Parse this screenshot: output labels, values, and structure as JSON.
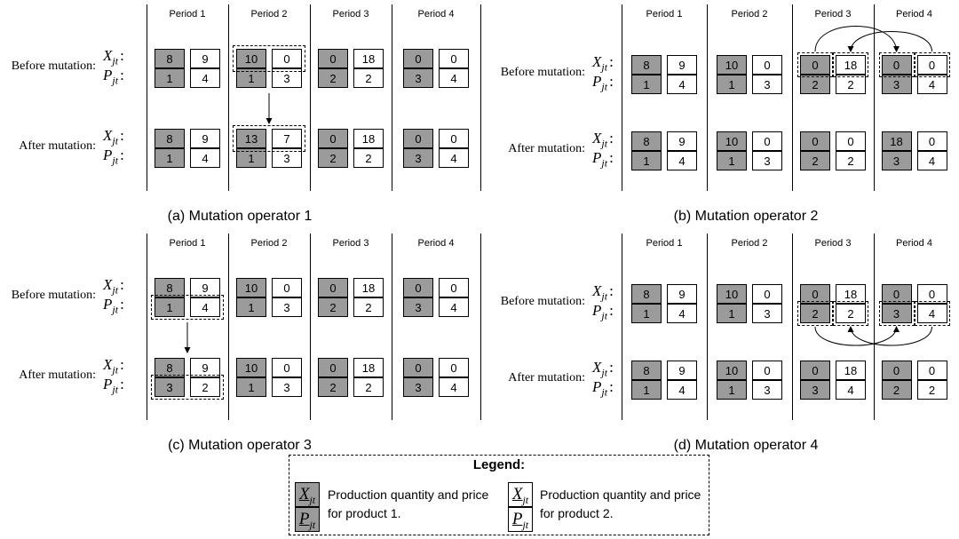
{
  "panels": [
    {
      "caption": "(a) Mutation operator 1",
      "periods": [
        "Period 1",
        "Period 2",
        "Period 3",
        "Period 4"
      ],
      "rows": {
        "before": {
          "label": "Before mutation:",
          "X": [
            [
              8,
              9
            ],
            [
              10,
              0
            ],
            [
              0,
              18
            ],
            [
              0,
              0
            ]
          ],
          "P": [
            [
              1,
              4
            ],
            [
              1,
              3
            ],
            [
              2,
              2
            ],
            [
              3,
              4
            ]
          ]
        },
        "after": {
          "label": "After mutation:",
          "X": [
            [
              8,
              9
            ],
            [
              13,
              7
            ],
            [
              0,
              18
            ],
            [
              0,
              0
            ]
          ],
          "P": [
            [
              1,
              4
            ],
            [
              1,
              3
            ],
            [
              2,
              2
            ],
            [
              3,
              4
            ]
          ]
        }
      }
    },
    {
      "caption": "(b) Mutation operator 2",
      "periods": [
        "Period 1",
        "Period 2",
        "Period 3",
        "Period 4"
      ],
      "rows": {
        "before": {
          "label": "Before mutation:",
          "X": [
            [
              8,
              9
            ],
            [
              10,
              0
            ],
            [
              0,
              18
            ],
            [
              0,
              0
            ]
          ],
          "P": [
            [
              1,
              4
            ],
            [
              1,
              3
            ],
            [
              2,
              2
            ],
            [
              3,
              4
            ]
          ]
        },
        "after": {
          "label": "After mutation:",
          "X": [
            [
              8,
              9
            ],
            [
              10,
              0
            ],
            [
              0,
              0
            ],
            [
              18,
              0
            ]
          ],
          "P": [
            [
              1,
              4
            ],
            [
              1,
              3
            ],
            [
              2,
              2
            ],
            [
              3,
              4
            ]
          ]
        }
      }
    },
    {
      "caption": "(c) Mutation operator 3",
      "periods": [
        "Period 1",
        "Period 2",
        "Period 3",
        "Period 4"
      ],
      "rows": {
        "before": {
          "label": "Before mutation:",
          "X": [
            [
              8,
              9
            ],
            [
              10,
              0
            ],
            [
              0,
              18
            ],
            [
              0,
              0
            ]
          ],
          "P": [
            [
              1,
              4
            ],
            [
              1,
              3
            ],
            [
              2,
              2
            ],
            [
              3,
              4
            ]
          ]
        },
        "after": {
          "label": "After mutation:",
          "X": [
            [
              8,
              9
            ],
            [
              10,
              0
            ],
            [
              0,
              18
            ],
            [
              0,
              0
            ]
          ],
          "P": [
            [
              3,
              2
            ],
            [
              1,
              3
            ],
            [
              2,
              2
            ],
            [
              3,
              4
            ]
          ]
        }
      }
    },
    {
      "caption": "(d) Mutation operator 4",
      "periods": [
        "Period 1",
        "Period 2",
        "Period 3",
        "Period 4"
      ],
      "rows": {
        "before": {
          "label": "Before mutation:",
          "X": [
            [
              8,
              9
            ],
            [
              10,
              0
            ],
            [
              0,
              18
            ],
            [
              0,
              0
            ]
          ],
          "P": [
            [
              1,
              4
            ],
            [
              1,
              3
            ],
            [
              2,
              2
            ],
            [
              3,
              4
            ]
          ]
        },
        "after": {
          "label": "After mutation:",
          "X": [
            [
              8,
              9
            ],
            [
              10,
              0
            ],
            [
              0,
              18
            ],
            [
              0,
              0
            ]
          ],
          "P": [
            [
              1,
              4
            ],
            [
              1,
              3
            ],
            [
              3,
              4
            ],
            [
              2,
              2
            ]
          ]
        }
      }
    }
  ],
  "var_labels": {
    "x_main": "X",
    "x_sub": "jt",
    "p_main": "P",
    "p_sub": "jt",
    "colon": ":"
  },
  "legend": {
    "title": "Legend:",
    "product1_text": "Production quantity and price for product 1.",
    "product2_text": "Production quantity and price for product 2.",
    "product1_color": "#9b9b9b",
    "product2_color": "#ffffff"
  }
}
